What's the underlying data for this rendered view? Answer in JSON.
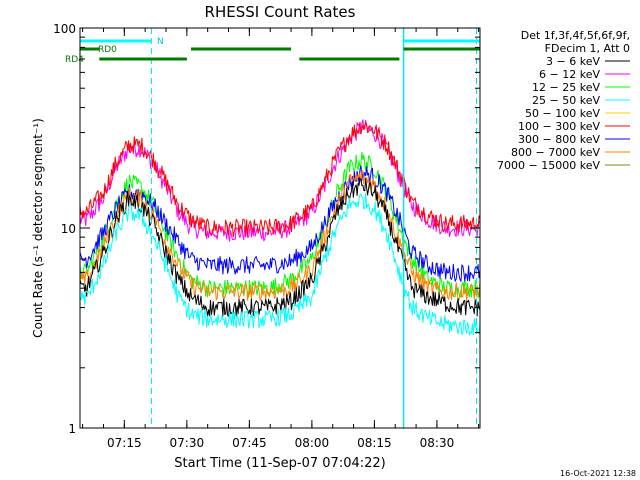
{
  "chart_data": {
    "type": "line",
    "title": "RHESSI Count Rates",
    "xlabel": "Start Time (11-Sep-07 07:04:22)",
    "ylabel": "Count Rate (s⁻¹ detector segment⁻¹)",
    "yscale": "log",
    "ylim": [
      1,
      100
    ],
    "xlim": [
      "07:04:22",
      "08:40:20"
    ],
    "x_ticks": [
      "07:15",
      "07:30",
      "07:45",
      "08:00",
      "08:15",
      "08:30"
    ],
    "y_ticks": [
      "1",
      "10",
      "100"
    ],
    "grid": false,
    "legend": {
      "placement": "right",
      "header": [
        "Det 1f,3f,4f,5f,6f,9f,",
        "FDecim 1, Att 0"
      ],
      "entries": [
        {
          "label": "3 − 6 keV",
          "color": "#000000"
        },
        {
          "label": "6 − 12 keV",
          "color": "#ff00ff"
        },
        {
          "label": "12 − 25 keV",
          "color": "#00ff00"
        },
        {
          "label": "25 − 50 keV",
          "color": "#00ffff"
        },
        {
          "label": "50 − 100 keV",
          "color": "#ffd000"
        },
        {
          "label": "100 − 300 keV",
          "color": "#ff0000"
        },
        {
          "label": "300 − 800 keV",
          "color": "#0000ff"
        },
        {
          "label": "800 − 7000 keV",
          "color": "#ff8000"
        },
        {
          "label": "7000 − 15000 keV",
          "color": "#6b8e23"
        }
      ]
    },
    "x": [
      "07:06",
      "07:10",
      "07:13",
      "07:16",
      "07:19",
      "07:22",
      "07:25",
      "07:28",
      "07:31",
      "07:35",
      "07:40",
      "07:45",
      "07:50",
      "07:55",
      "08:00",
      "08:03",
      "08:06",
      "08:09",
      "08:12",
      "08:15",
      "08:18",
      "08:21",
      "08:24",
      "08:28",
      "08:32",
      "08:36",
      "08:40"
    ],
    "series": [
      {
        "name": "6 − 12 keV",
        "color": "#ff00ff",
        "values": [
          11,
          14,
          20,
          25,
          25,
          21,
          16,
          12,
          10,
          9.5,
          9.5,
          9.5,
          9.5,
          10,
          12,
          16,
          22,
          28,
          32,
          30,
          25,
          18,
          13,
          11,
          10,
          10,
          10
        ]
      },
      {
        "name": "100 − 300 keV",
        "color": "#ff0000",
        "values": [
          12,
          15,
          21,
          26,
          26,
          22,
          17,
          13,
          11,
          10,
          10,
          10,
          10,
          10.5,
          12.5,
          17,
          23,
          29,
          33,
          31,
          26,
          19,
          13.5,
          11.5,
          10.5,
          10.5,
          10.5
        ]
      },
      {
        "name": "12 − 25 keV",
        "color": "#00ff00",
        "values": [
          6,
          9,
          13,
          17,
          16,
          13,
          9.5,
          7,
          5.5,
          5,
          5,
          5,
          5,
          5.5,
          7,
          10,
          15,
          20,
          22,
          20,
          15,
          10,
          7,
          5.5,
          5,
          5,
          5
        ]
      },
      {
        "name": "300 − 800 keV",
        "color": "#0000ff",
        "values": [
          7,
          9.5,
          12.5,
          15,
          15,
          13,
          10.5,
          8.5,
          7,
          6.5,
          6.5,
          6.5,
          6.5,
          6.8,
          8,
          10.5,
          14,
          17,
          19,
          18,
          15,
          11,
          7.5,
          6.5,
          6,
          6,
          6
        ]
      },
      {
        "name": "800 − 7000 keV",
        "color": "#ff8000",
        "values": [
          5.5,
          8,
          11.5,
          14.5,
          14,
          11.5,
          8.5,
          6.5,
          5.2,
          4.8,
          4.8,
          4.8,
          4.8,
          5,
          6.2,
          9,
          13,
          17,
          18,
          16.5,
          12.5,
          8.5,
          6,
          5,
          4.8,
          4.8,
          4.8
        ]
      },
      {
        "name": "3 − 6 keV",
        "color": "#000000",
        "values": [
          5,
          7.5,
          11,
          14,
          13,
          10.5,
          7.5,
          5.5,
          4.5,
          4,
          4,
          4,
          4,
          4.3,
          5.5,
          8,
          12,
          15,
          16.5,
          15,
          11.5,
          7.5,
          5,
          4.5,
          4.2,
          4,
          4
        ]
      },
      {
        "name": "25 − 50 keV",
        "color": "#00ffff",
        "values": [
          4.5,
          6.5,
          9.5,
          12,
          11.5,
          9,
          6.5,
          4.5,
          3.7,
          3.5,
          3.5,
          3.5,
          3.5,
          3.7,
          4.5,
          7,
          10,
          13,
          14,
          12.5,
          9.5,
          6,
          4,
          3.5,
          3.3,
          3.2,
          3.2
        ]
      }
    ],
    "annotations": {
      "top_labels": [
        "N",
        "RD0",
        "RD4"
      ],
      "dashed_vlines": [
        "07:21:30",
        "08:39:30"
      ],
      "solid_vlines": [
        "08:22"
      ]
    }
  },
  "footer": {
    "timestamp": "16-Oct-2021 12:38"
  }
}
